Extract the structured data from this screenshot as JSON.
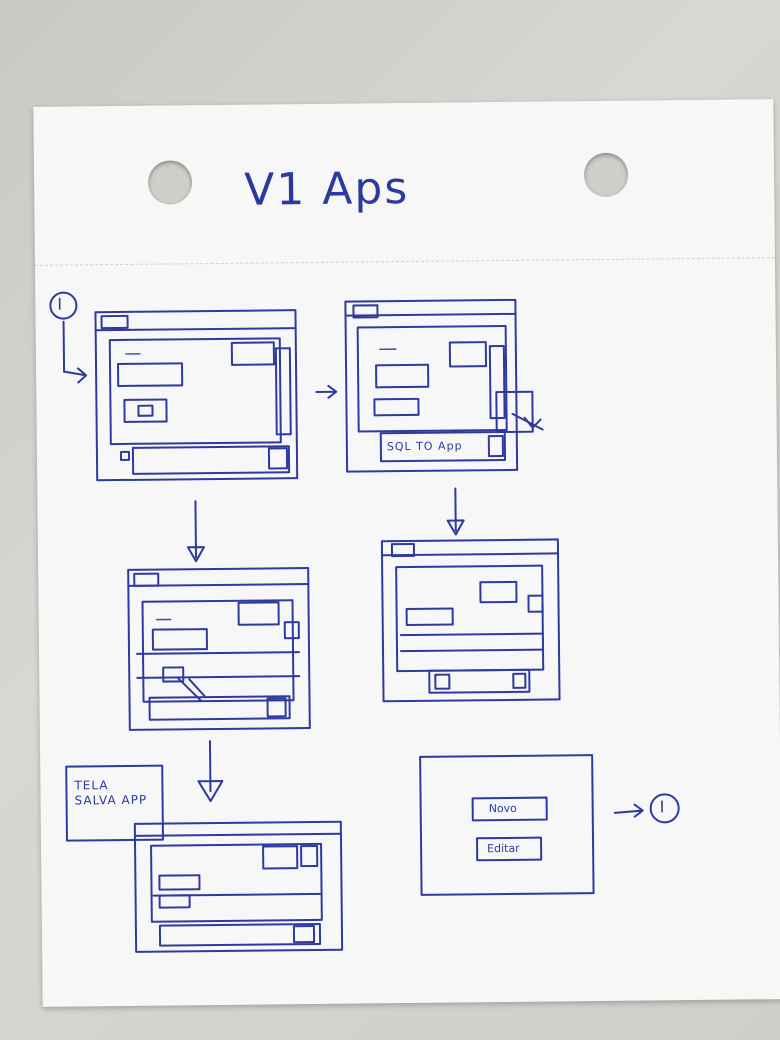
{
  "page": {
    "title": "V1 Aps"
  },
  "markers": {
    "start": "I",
    "end": "I"
  },
  "frames": {
    "f2": {
      "button_label": "SQL TO App"
    },
    "f5": {
      "note_label": "TELA SALVA APP"
    },
    "f6": {
      "button_1": "Novo",
      "button_2": "Editar"
    }
  }
}
